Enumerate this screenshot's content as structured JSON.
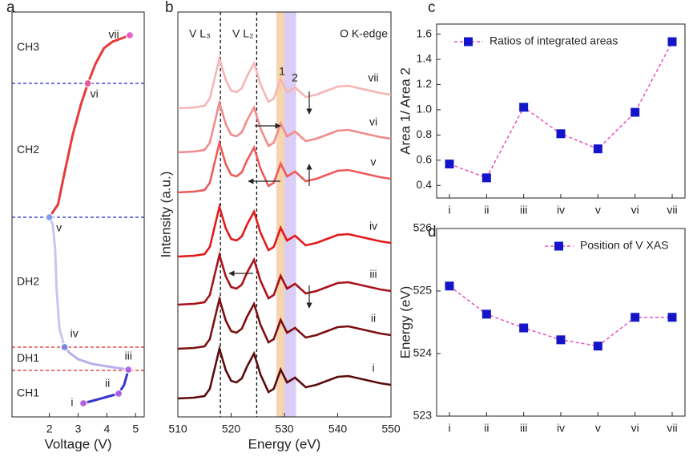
{
  "chart_data": [
    {
      "type": "line",
      "label": "a",
      "xlabel": "Voltage (V)",
      "xlim": [
        0.7,
        5.3
      ],
      "xticks": [
        2,
        3,
        4,
        5
      ],
      "ylim": [
        0,
        505
      ],
      "regions": [
        "CH3",
        "CH2",
        "DH2",
        "DH1",
        "CH1"
      ],
      "hlines": [
        {
          "y": 416,
          "color": "#2323d6"
        },
        {
          "y": 249,
          "color": "#2323d6"
        },
        {
          "y": 87,
          "color": "#e62020"
        },
        {
          "y": 58,
          "color": "#e62020"
        }
      ],
      "curves": [
        {
          "color": "#3535cf",
          "x": [
            3.18,
            3.6,
            4.0,
            4.41,
            4.6,
            4.75
          ],
          "y": [
            17,
            21,
            25,
            29,
            40,
            59
          ]
        },
        {
          "color": "#b9b0ea",
          "x": [
            4.75,
            4.2,
            3.5,
            3.0,
            2.7,
            2.53
          ],
          "y": [
            59,
            62,
            66,
            72,
            80,
            87
          ]
        },
        {
          "color": "#c8c6f0",
          "x": [
            2.53,
            2.35,
            2.25,
            2.2,
            2.12,
            2.0
          ],
          "y": [
            87,
            110,
            160,
            210,
            240,
            249
          ]
        },
        {
          "color": "#e83a3a",
          "x": [
            2.0,
            2.3,
            2.5,
            2.8,
            3.1,
            3.34
          ],
          "y": [
            249,
            265,
            300,
            350,
            390,
            416
          ]
        },
        {
          "color": "#e83a3a",
          "x": [
            3.34,
            3.6,
            3.9,
            4.2,
            4.5,
            4.8
          ],
          "y": [
            416,
            440,
            460,
            468,
            472,
            476
          ]
        }
      ],
      "points": {
        "labels": [
          "i",
          "ii",
          "iii",
          "iv",
          "v",
          "vi",
          "vii"
        ],
        "x": [
          3.18,
          4.41,
          4.75,
          2.53,
          2.0,
          3.34,
          4.8
        ],
        "y": [
          17,
          29,
          59,
          87,
          249,
          416,
          476
        ],
        "colors": [
          "#b05ce0",
          "#b05ce0",
          "#b05ce0",
          "#6f7fe0",
          "#7f9cf0",
          "#e8559a",
          "#e855c8"
        ]
      }
    },
    {
      "type": "line",
      "label": "b",
      "xlabel": "Energy (eV)",
      "ylabel": "Intensity (a.u.)",
      "xlim": [
        510,
        550
      ],
      "xticks": [
        510,
        520,
        530,
        540,
        550
      ],
      "ylim": [
        0,
        505
      ],
      "annotations": [
        "V L₃",
        "V L₂",
        "1",
        "2",
        "O K-edge"
      ],
      "vlines": [
        518,
        524.8
      ],
      "bands": [
        {
          "x": [
            528.5,
            530
          ],
          "color": "#f6d4ae"
        },
        {
          "x": [
            530,
            532.2
          ],
          "color": "#dacdf6"
        }
      ],
      "x": [
        510,
        513,
        515,
        516,
        517,
        517.8,
        519,
        520,
        521,
        522,
        523,
        524.3,
        525.5,
        527,
        528,
        529.3,
        530.5,
        532,
        534,
        536,
        538,
        540,
        542,
        544,
        546,
        548,
        550
      ],
      "series": [
        {
          "name": "i",
          "color": "#5a0c0c",
          "values": [
            23,
            24,
            26,
            35,
            63,
            85,
            58,
            45,
            43,
            48,
            63,
            79,
            53,
            31,
            35,
            59,
            43,
            49,
            37,
            40,
            45,
            50,
            51,
            48,
            45,
            42,
            40
          ]
        },
        {
          "name": "ii",
          "color": "#7c1010",
          "values": [
            85,
            86,
            88,
            97,
            125,
            147,
            120,
            107,
            105,
            110,
            125,
            141,
            115,
            93,
            97,
            121,
            105,
            111,
            99,
            102,
            107,
            112,
            113,
            110,
            107,
            104,
            102
          ]
        },
        {
          "name": "iii",
          "color": "#a8131a",
          "values": [
            140,
            141,
            143,
            152,
            180,
            202,
            175,
            162,
            160,
            165,
            180,
            196,
            170,
            148,
            152,
            176,
            160,
            166,
            154,
            157,
            162,
            167,
            168,
            165,
            162,
            159,
            157
          ]
        },
        {
          "name": "iv",
          "color": "#e31a1c",
          "values": [
            200,
            201,
            203,
            212,
            240,
            262,
            235,
            222,
            220,
            225,
            240,
            256,
            230,
            208,
            212,
            236,
            220,
            226,
            214,
            217,
            222,
            227,
            228,
            225,
            222,
            219,
            217
          ]
        },
        {
          "name": "v",
          "color": "#ee5a5a",
          "values": [
            280,
            281,
            283,
            292,
            320,
            342,
            315,
            302,
            300,
            305,
            320,
            336,
            310,
            288,
            292,
            316,
            300,
            306,
            294,
            297,
            302,
            307,
            308,
            305,
            302,
            299,
            297
          ]
        },
        {
          "name": "vi",
          "color": "#f28b8b",
          "values": [
            330,
            331,
            333,
            342,
            370,
            392,
            365,
            352,
            350,
            355,
            370,
            386,
            360,
            338,
            342,
            366,
            350,
            356,
            344,
            347,
            352,
            357,
            358,
            355,
            352,
            349,
            347
          ]
        },
        {
          "name": "vii",
          "color": "#f7b5b5",
          "values": [
            385,
            386,
            388,
            397,
            425,
            447,
            420,
            407,
            405,
            410,
            425,
            441,
            415,
            393,
            397,
            421,
            405,
            411,
            399,
            402,
            407,
            412,
            413,
            410,
            407,
            404,
            402
          ]
        }
      ]
    },
    {
      "type": "line",
      "label": "c",
      "ylabel": "Area 1/ Area 2",
      "categories": [
        "i",
        "ii",
        "iii",
        "iv",
        "v",
        "vi",
        "vii"
      ],
      "ylim": [
        0.3,
        1.68
      ],
      "yticks": [
        0.4,
        0.6,
        0.8,
        {
          "value": 1,
          "label": "1.0"
        },
        1.2,
        1.4,
        1.6
      ],
      "legend": "upper left",
      "series": [
        {
          "name": "Ratios of integrated areas",
          "color": "#1414c8",
          "line_color": "#e64fbe",
          "linestyle": "dashed",
          "marker": "square",
          "values": [
            0.57,
            0.46,
            1.02,
            0.81,
            0.69,
            0.98,
            1.54
          ]
        }
      ]
    },
    {
      "type": "line",
      "label": "d",
      "ylabel": "Energy (eV)",
      "categories": [
        "i",
        "ii",
        "iii",
        "iv",
        "v",
        "vi",
        "vii"
      ],
      "ylim": [
        523,
        526
      ],
      "yticks": [
        523,
        524,
        525,
        526
      ],
      "legend": "upper center",
      "series": [
        {
          "name": "Position of V XAS",
          "color": "#1414c8",
          "line_color": "#e64fbe",
          "linestyle": "dashed",
          "marker": "square",
          "values": [
            525.08,
            524.63,
            524.41,
            524.22,
            524.12,
            524.58,
            524.58
          ]
        }
      ]
    }
  ]
}
